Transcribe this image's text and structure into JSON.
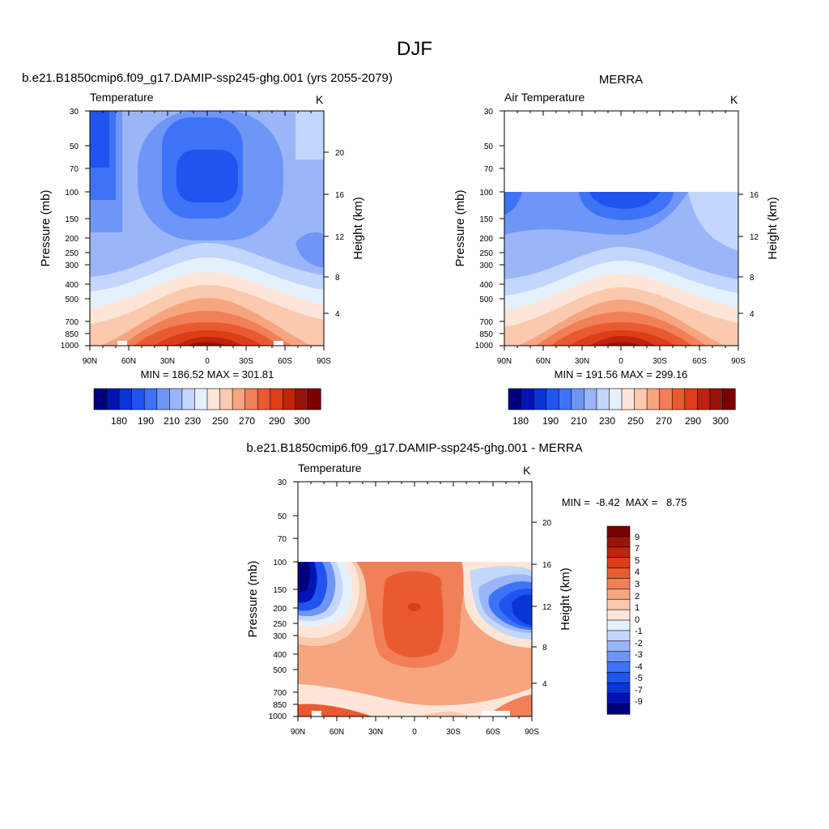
{
  "figure": {
    "title": "DJF"
  },
  "colors": {
    "temp_scale": [
      "#00007f",
      "#0014b4",
      "#0a35d6",
      "#1f54ee",
      "#3d74f7",
      "#6e96f7",
      "#9bb6f8",
      "#c3d6fb",
      "#e5f0fd",
      "#fde6d8",
      "#fbc9ae",
      "#f6a57f",
      "#f17f57",
      "#ea5a31",
      "#dc3f17",
      "#c0230c",
      "#98140a",
      "#7a0000"
    ],
    "diff_scale": [
      "#00007f",
      "#0014b4",
      "#0a35d6",
      "#1f54ee",
      "#3d74f7",
      "#6e96f7",
      "#9bb6f8",
      "#c3d6fb",
      "#e5f0fd",
      "#fde6d8",
      "#fbc9ae",
      "#f6a57f",
      "#f17f57",
      "#ea5a31",
      "#dc3f17",
      "#c0230c",
      "#98140a",
      "#7a0000"
    ]
  },
  "chart_data": [
    {
      "type": "heatmap",
      "title": "b.e21.B1850cmip6.f09_g17.DAMIP-ssp245-ghg.001 (yrs 2055-2079)",
      "subtitle_left": "Temperature",
      "units": "K",
      "ylabel": "Pressure (mb)",
      "ylabel_right": "Height (km)",
      "x_ticks": [
        "90N",
        "60N",
        "30N",
        "0",
        "30S",
        "60S",
        "90S"
      ],
      "y_ticks": [
        "30",
        "50",
        "70",
        "100",
        "150",
        "200",
        "250",
        "300",
        "400",
        "500",
        "700",
        "850",
        "1000"
      ],
      "y_ticks_right": [
        "20",
        "16",
        "12",
        "8",
        "4"
      ],
      "stats": "MIN = 186.52  MAX = 301.81",
      "ylim": [
        1000,
        30
      ],
      "colorbar_labels": [
        "180",
        "190",
        "210",
        "230",
        "250",
        "270",
        "290",
        "300"
      ],
      "min": 186.52,
      "max": 301.81
    },
    {
      "type": "heatmap",
      "title": "MERRA",
      "subtitle_left": "Air Temperature",
      "units": "K",
      "ylabel": "Pressure (mb)",
      "ylabel_right": "Height (km)",
      "x_ticks": [
        "90N",
        "60N",
        "30N",
        "0",
        "30S",
        "60S",
        "90S"
      ],
      "y_ticks": [
        "30",
        "50",
        "70",
        "100",
        "150",
        "200",
        "250",
        "300",
        "400",
        "500",
        "700",
        "850",
        "1000"
      ],
      "y_ticks_right": [
        "16",
        "12",
        "8",
        "4"
      ],
      "stats": "MIN = 191.56  MAX = 299.16",
      "ylim": [
        1000,
        30
      ],
      "data_top_mb": 100,
      "colorbar_labels": [
        "180",
        "190",
        "210",
        "230",
        "250",
        "270",
        "290",
        "300"
      ],
      "min": 191.56,
      "max": 299.16
    },
    {
      "type": "heatmap",
      "title": "b.e21.B1850cmip6.f09_g17.DAMIP-ssp245-ghg.001 - MERRA",
      "subtitle_left": "Temperature",
      "units": "K",
      "ylabel": "Pressure (mb)",
      "ylabel_right": "Height (km)",
      "x_ticks": [
        "90N",
        "60N",
        "30N",
        "0",
        "30S",
        "60S",
        "90S"
      ],
      "y_ticks": [
        "30",
        "50",
        "70",
        "100",
        "150",
        "200",
        "250",
        "300",
        "400",
        "500",
        "700",
        "850",
        "1000"
      ],
      "y_ticks_right": [
        "20",
        "16",
        "12",
        "8",
        "4"
      ],
      "stats": "MIN =  -8.42  MAX =   8.75",
      "ylim": [
        1000,
        30
      ],
      "data_top_mb": 100,
      "colorbar_labels": [
        "9",
        "7",
        "5",
        "4",
        "3",
        "2",
        "1",
        "0",
        "-1",
        "-2",
        "-3",
        "-4",
        "-5",
        "-7",
        "-9"
      ],
      "min": -8.42,
      "max": 8.75
    }
  ]
}
